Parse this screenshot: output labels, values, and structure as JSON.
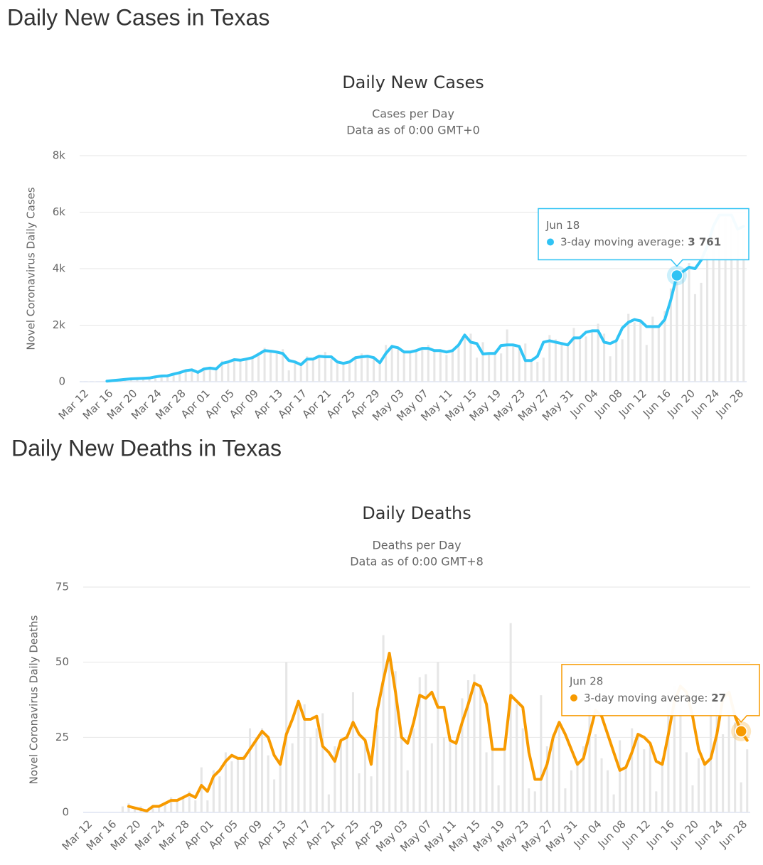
{
  "headings": [
    "Daily New Cases in Texas",
    "Daily New Deaths in Texas"
  ],
  "chart_data": [
    {
      "type": "line",
      "title": "Daily New Cases",
      "subtitle": [
        "Cases per Day",
        "Data as of 0:00 GMT+0"
      ],
      "y_label": "Novel Coronavirus Daily Cases",
      "categories": [
        "Mar 12",
        null,
        null,
        null,
        "Mar 16",
        null,
        null,
        null,
        "Mar 20",
        null,
        null,
        null,
        "Mar 24",
        null,
        null,
        null,
        "Mar 28",
        null,
        null,
        null,
        "Apr 01",
        null,
        null,
        null,
        "Apr 05",
        null,
        null,
        null,
        "Apr 09",
        null,
        null,
        null,
        "Apr 13",
        null,
        null,
        null,
        "Apr 17",
        null,
        null,
        null,
        "Apr 21",
        null,
        null,
        null,
        "Apr 25",
        null,
        null,
        null,
        "Apr 29",
        null,
        null,
        null,
        "May 03",
        null,
        null,
        null,
        "May 07",
        null,
        null,
        null,
        "May 11",
        null,
        null,
        null,
        "May 15",
        null,
        null,
        null,
        "May 19",
        null,
        null,
        null,
        "May 23",
        null,
        null,
        null,
        "May 27",
        null,
        null,
        null,
        "May 31",
        null,
        null,
        null,
        "Jun 04",
        null,
        null,
        null,
        "Jun 08",
        null,
        null,
        null,
        "Jun 12",
        null,
        null,
        null,
        "Jun 16",
        null,
        null,
        null,
        "Jun 20",
        null,
        null,
        null,
        "Jun 24",
        null,
        null,
        null,
        "Jun 28",
        null
      ],
      "series": [
        {
          "type": "bar",
          "color": "#e6e6e6",
          "values": [
            5,
            10,
            15,
            20,
            30,
            40,
            60,
            80,
            100,
            110,
            120,
            140,
            190,
            200,
            230,
            290,
            360,
            400,
            450,
            300,
            480,
            500,
            500,
            740,
            650,
            820,
            780,
            850,
            900,
            1000,
            1200,
            1050,
            1000,
            1150,
            400,
            700,
            600,
            900,
            800,
            850,
            1050,
            800,
            660,
            680,
            700,
            900,
            1000,
            900,
            800,
            620,
            1300,
            1200,
            1150,
            1100,
            1050,
            1100,
            1200,
            1300,
            1050,
            1100,
            950,
            1150,
            1300,
            1600,
            1700,
            850,
            1400,
            1000,
            1100,
            1000,
            1850,
            1300,
            1250,
            1350,
            700,
            700,
            850,
            1650,
            1500,
            1400,
            1300,
            1900,
            1500,
            1600,
            1800,
            2050,
            1700,
            900,
            1400,
            1500,
            2400,
            2100,
            2200,
            1300,
            2300,
            2000,
            2500,
            3300,
            4000,
            3900,
            4200,
            3100,
            3500,
            4500,
            5500,
            5900,
            5800,
            5700,
            5400,
            5400
          ]
        },
        {
          "type": "line",
          "color": "#30c3f4",
          "values": [
            null,
            null,
            null,
            null,
            20,
            40,
            60,
            80,
            100,
            110,
            120,
            130,
            170,
            200,
            210,
            270,
            320,
            390,
            420,
            330,
            450,
            480,
            450,
            650,
            700,
            780,
            760,
            800,
            850,
            970,
            1100,
            1080,
            1050,
            1000,
            750,
            700,
            600,
            800,
            800,
            900,
            880,
            880,
            700,
            650,
            700,
            850,
            880,
            900,
            850,
            670,
            1000,
            1250,
            1200,
            1050,
            1050,
            1100,
            1180,
            1180,
            1100,
            1100,
            1050,
            1100,
            1300,
            1650,
            1400,
            1350,
            980,
            1000,
            1000,
            1280,
            1300,
            1300,
            1250,
            750,
            750,
            900,
            1400,
            1450,
            1400,
            1350,
            1300,
            1550,
            1550,
            1750,
            1800,
            1800,
            1400,
            1350,
            1450,
            1900,
            2100,
            2200,
            2150,
            1950,
            1950,
            1950,
            2200,
            2900,
            3761,
            3900,
            4050,
            4000,
            4300,
            4800,
            5500,
            5900,
            5900,
            5900,
            5400,
            5500
          ]
        }
      ],
      "ylim": [
        0,
        8000
      ],
      "yticks": [
        0,
        {
          "value": 2000,
          "label": "2k"
        },
        {
          "value": 4000,
          "label": "4k"
        },
        {
          "value": 6000,
          "label": "6k"
        },
        {
          "value": 8000,
          "label": "8k"
        }
      ],
      "grid": true,
      "tooltip": {
        "x": "Jun 18",
        "label": "3-day moving average:",
        "value": 3761,
        "value_label": "3 761"
      }
    },
    {
      "type": "line",
      "title": "Daily Deaths",
      "subtitle": [
        "Deaths per Day",
        "Data as of 0:00 GMT+8"
      ],
      "y_label": "Novel Coronavirus Daily Deaths",
      "categories": [
        "Mar 12",
        null,
        null,
        null,
        "Mar 16",
        null,
        null,
        null,
        "Mar 20",
        null,
        null,
        null,
        "Mar 24",
        null,
        null,
        null,
        "Mar 28",
        null,
        null,
        null,
        "Apr 01",
        null,
        null,
        null,
        "Apr 05",
        null,
        null,
        null,
        "Apr 09",
        null,
        null,
        null,
        "Apr 13",
        null,
        null,
        null,
        "Apr 17",
        null,
        null,
        null,
        "Apr 21",
        null,
        null,
        null,
        "Apr 25",
        null,
        null,
        null,
        "Apr 29",
        null,
        null,
        null,
        "May 03",
        null,
        null,
        null,
        "May 07",
        null,
        null,
        null,
        "May 11",
        null,
        null,
        null,
        "May 15",
        null,
        null,
        null,
        "May 19",
        null,
        null,
        null,
        "May 23",
        null,
        null,
        null,
        "May 27",
        null,
        null,
        null,
        "May 31",
        null,
        null,
        null,
        "Jun 04",
        null,
        null,
        null,
        "Jun 08",
        null,
        null,
        null,
        "Jun 12",
        null,
        null,
        null,
        "Jun 16",
        null,
        null,
        null,
        "Jun 20",
        null,
        null,
        null,
        "Jun 24",
        null,
        null,
        null,
        "Jun 28",
        null
      ],
      "series": [
        {
          "type": "bar",
          "color": "#e6e6e6",
          "values": [
            0,
            0,
            0,
            0,
            0,
            0,
            2,
            3,
            1,
            2,
            0,
            2,
            2,
            3,
            5,
            4,
            5,
            7,
            4,
            15,
            4,
            14,
            12,
            20,
            17,
            18,
            19,
            28,
            25,
            28,
            19,
            11,
            16,
            50,
            23,
            35,
            36,
            25,
            28,
            33,
            6,
            22,
            24,
            26,
            40,
            13,
            24,
            12,
            29,
            59,
            53,
            47,
            25,
            14,
            28,
            45,
            46,
            23,
            50,
            25,
            24,
            24,
            38,
            44,
            46,
            42,
            20,
            22,
            9,
            22,
            63,
            36,
            28,
            8,
            7,
            39,
            22,
            26,
            30,
            8,
            14,
            17,
            22,
            36,
            26,
            18,
            14,
            6,
            24,
            15,
            28,
            26,
            21,
            23,
            7,
            18,
            40,
            42,
            37,
            20,
            9,
            18,
            16,
            38,
            40,
            26,
            34,
            30,
            10,
            21
          ]
        },
        {
          "type": "line",
          "color": "#f79a00",
          "values": [
            null,
            null,
            null,
            null,
            null,
            null,
            null,
            2,
            1.5,
            1,
            0.5,
            2,
            2,
            3,
            4,
            4,
            5,
            6,
            5,
            9,
            7,
            12,
            14,
            17,
            19,
            18,
            18,
            21,
            24,
            27,
            25,
            19,
            16,
            26,
            31,
            37,
            31,
            31,
            32,
            22,
            20,
            17,
            24,
            25,
            30,
            26,
            24,
            16,
            34,
            44,
            53,
            40,
            25,
            23,
            30,
            39,
            38,
            40,
            35,
            35,
            24,
            23,
            30,
            36,
            43,
            42,
            36,
            21,
            21,
            21,
            39,
            37,
            35,
            20,
            11,
            11,
            16,
            25,
            30,
            26,
            21,
            16,
            18,
            26,
            34,
            32,
            26,
            20,
            14,
            15,
            20,
            26,
            25,
            23,
            17,
            16,
            26,
            37,
            42,
            40,
            32,
            21,
            16,
            18,
            26,
            38,
            40,
            32,
            27,
            24
          ]
        }
      ],
      "ylim": [
        0,
        75
      ],
      "yticks": [
        0,
        25,
        50,
        75
      ],
      "grid": true,
      "tooltip": {
        "x": "Jun 28",
        "label": "3-day moving average:",
        "value": 27
      }
    }
  ]
}
